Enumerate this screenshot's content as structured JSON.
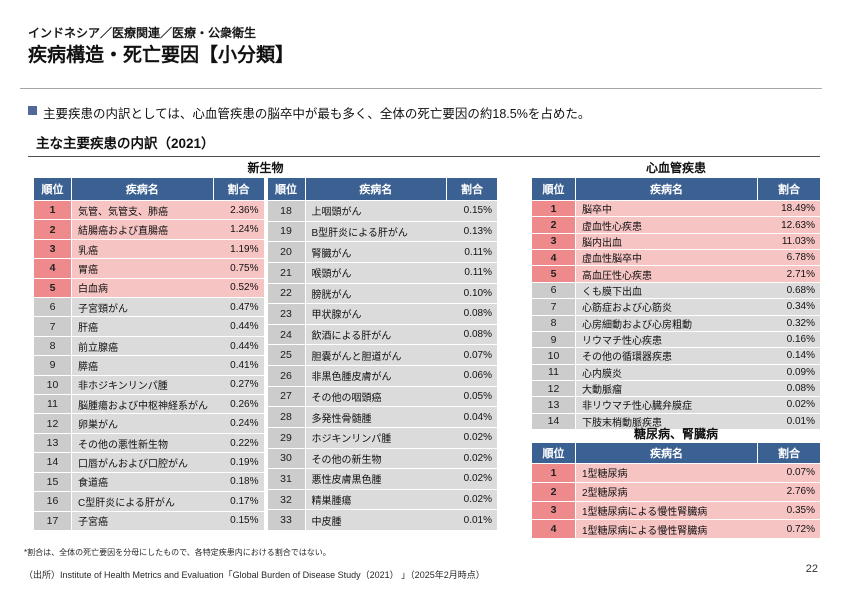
{
  "page": {
    "breadcrumb": "インドネシア／医療関連／医療・公衆衛生",
    "title": "疾病構造・死亡要因【小分類】",
    "summary": "主要疾患の内訳としては、心血管疾患の脳卒中が最も多く、全体の死亡要因の約18.5%を占めた。",
    "section_title": "主な主要疾患の内訳（2021）",
    "footnote": "*割合は、全体の死亡要因を分母にしたもので、各特定疾患内における割合ではない。",
    "source": "（出所）Institute of Health Metrics and Evaluation「Global Burden of Disease Study（2021） 」（2025年2月時点）",
    "page_number": "22"
  },
  "colors": {
    "header_blue": "#3b6092",
    "rank_salmon": "#ee8a8b",
    "row_pink": "#f7c4c4",
    "rank_gray": "#cccccc",
    "row_gray": "#dbdbdb",
    "bullet_blue": "#52689a"
  },
  "tables": {
    "highlight_rank_max": 5,
    "headers": {
      "rank": "順位",
      "disease": "疾病名",
      "share": "割合"
    },
    "neoplasms": {
      "title": "新生物",
      "rows_left": [
        {
          "rank": "1",
          "name": "気管、気管支、肺癌",
          "share": "2.36%"
        },
        {
          "rank": "2",
          "name": "結腸癌および直腸癌",
          "share": "1.24%"
        },
        {
          "rank": "3",
          "name": "乳癌",
          "share": "1.19%"
        },
        {
          "rank": "4",
          "name": "胃癌",
          "share": "0.75%"
        },
        {
          "rank": "5",
          "name": "白血病",
          "share": "0.52%"
        },
        {
          "rank": "6",
          "name": "子宮頸がん",
          "share": "0.47%"
        },
        {
          "rank": "7",
          "name": "肝癌",
          "share": "0.44%"
        },
        {
          "rank": "8",
          "name": "前立腺癌",
          "share": "0.44%"
        },
        {
          "rank": "9",
          "name": "膵癌",
          "share": "0.41%"
        },
        {
          "rank": "10",
          "name": "非ホジキンリンパ腫",
          "share": "0.27%"
        },
        {
          "rank": "11",
          "name": "脳腫瘍および中枢神経系がん",
          "share": "0.26%"
        },
        {
          "rank": "12",
          "name": "卵巣がん",
          "share": "0.24%"
        },
        {
          "rank": "13",
          "name": "その他の悪性新生物",
          "share": "0.22%"
        },
        {
          "rank": "14",
          "name": "口唇がんおよび口腔がん",
          "share": "0.19%"
        },
        {
          "rank": "15",
          "name": "食道癌",
          "share": "0.18%"
        },
        {
          "rank": "16",
          "name": "C型肝炎による肝がん",
          "share": "0.17%"
        },
        {
          "rank": "17",
          "name": "子宮癌",
          "share": "0.15%"
        }
      ],
      "rows_right": [
        {
          "rank": "18",
          "name": "上咽頭がん",
          "share": "0.15%"
        },
        {
          "rank": "19",
          "name": "B型肝炎による肝がん",
          "share": "0.13%"
        },
        {
          "rank": "20",
          "name": "腎臓がん",
          "share": "0.11%"
        },
        {
          "rank": "21",
          "name": "喉頭がん",
          "share": "0.11%"
        },
        {
          "rank": "22",
          "name": "膀胱がん",
          "share": "0.10%"
        },
        {
          "rank": "23",
          "name": "甲状腺がん",
          "share": "0.08%"
        },
        {
          "rank": "24",
          "name": "飲酒による肝がん",
          "share": "0.08%"
        },
        {
          "rank": "25",
          "name": "胆嚢がんと胆道がん",
          "share": "0.07%"
        },
        {
          "rank": "26",
          "name": "非黒色腫皮膚がん",
          "share": "0.06%"
        },
        {
          "rank": "27",
          "name": "その他の咽頭癌",
          "share": "0.05%"
        },
        {
          "rank": "28",
          "name": "多発性骨髄腫",
          "share": "0.04%"
        },
        {
          "rank": "29",
          "name": "ホジキンリンパ腫",
          "share": "0.02%"
        },
        {
          "rank": "30",
          "name": "その他の新生物",
          "share": "0.02%"
        },
        {
          "rank": "31",
          "name": "悪性皮膚黒色腫",
          "share": "0.02%"
        },
        {
          "rank": "32",
          "name": "精巣腫瘍",
          "share": "0.02%"
        },
        {
          "rank": "33",
          "name": "中皮腫",
          "share": "0.01%"
        }
      ]
    },
    "cardiovascular": {
      "title": "心血管疾患",
      "rows": [
        {
          "rank": "1",
          "name": "脳卒中",
          "share": "18.49%"
        },
        {
          "rank": "2",
          "name": "虚血性心疾患",
          "share": "12.63%"
        },
        {
          "rank": "3",
          "name": "脳内出血",
          "share": "11.03%"
        },
        {
          "rank": "4",
          "name": "虚血性脳卒中",
          "share": "6.78%"
        },
        {
          "rank": "5",
          "name": "高血圧性心疾患",
          "share": "2.71%"
        },
        {
          "rank": "6",
          "name": "くも膜下出血",
          "share": "0.68%"
        },
        {
          "rank": "7",
          "name": "心筋症および心筋炎",
          "share": "0.34%"
        },
        {
          "rank": "8",
          "name": "心房細動および心房粗動",
          "share": "0.32%"
        },
        {
          "rank": "9",
          "name": "リウマチ性心疾患",
          "share": "0.16%"
        },
        {
          "rank": "10",
          "name": "その他の循環器疾患",
          "share": "0.14%"
        },
        {
          "rank": "11",
          "name": "心内膜炎",
          "share": "0.09%"
        },
        {
          "rank": "12",
          "name": "大動脈瘤",
          "share": "0.08%"
        },
        {
          "rank": "13",
          "name": "非リウマチ性心臓弁膜症",
          "share": "0.02%"
        },
        {
          "rank": "14",
          "name": "下肢末梢動脈疾患",
          "share": "0.01%"
        }
      ]
    },
    "diabetes_kidney": {
      "title": "糖尿病、腎臓病",
      "rows": [
        {
          "rank": "1",
          "name": "1型糖尿病",
          "share": "0.07%"
        },
        {
          "rank": "2",
          "name": "2型糖尿病",
          "share": "2.76%"
        },
        {
          "rank": "3",
          "name": "1型糖尿病による慢性腎臓病",
          "share": "0.35%"
        },
        {
          "rank": "4",
          "name": "1型糖尿病による慢性腎臓病",
          "share": "0.72%"
        }
      ]
    }
  }
}
